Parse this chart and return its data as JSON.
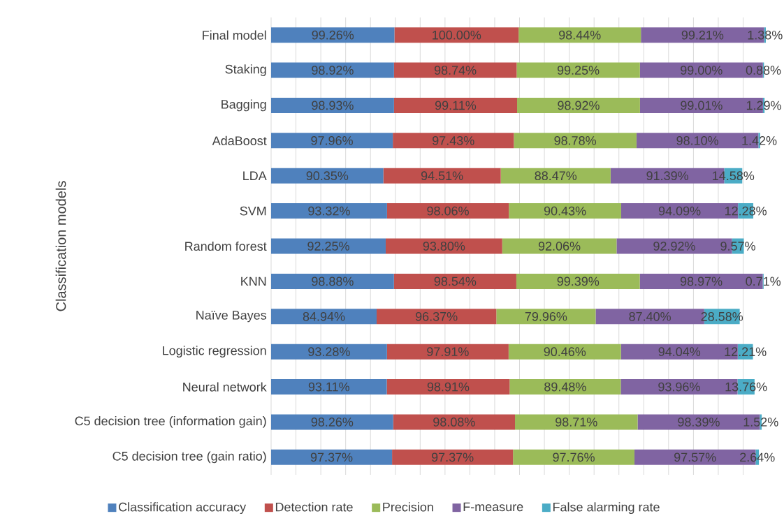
{
  "chart_data": {
    "type": "bar",
    "orientation": "horizontal",
    "stacked": true,
    "tick_labels": "y",
    "grid": "x",
    "legend": "bottom",
    "ylabel": "Classification models",
    "categories": [
      "Final model",
      "Staking",
      "Bagging",
      "AdaBoost",
      "LDA",
      "SVM",
      "Random forest",
      "KNN",
      "Naïve Bayes",
      "Logistic regression",
      "Neural network",
      "C5 decision tree (information gain)",
      "C5 decision tree (gain ratio)"
    ],
    "series": [
      {
        "name": "Classification accuracy",
        "color": "#4f81bd",
        "values": [
          99.26,
          98.92,
          98.93,
          97.96,
          90.35,
          93.32,
          92.25,
          98.88,
          84.94,
          93.28,
          93.11,
          98.26,
          97.37
        ],
        "value_labels": [
          "99.26%",
          "98.92%",
          "98.93%",
          "97.96%",
          "90.35%",
          "93.32%",
          "92.25%",
          "98.88%",
          "84.94%",
          "93.28%",
          "93.11%",
          "98.26%",
          "97.37%"
        ]
      },
      {
        "name": "Detection rate",
        "color": "#c0504d",
        "values": [
          100.0,
          98.74,
          99.11,
          97.43,
          94.51,
          98.06,
          93.8,
          98.54,
          96.37,
          97.91,
          98.91,
          98.08,
          97.37
        ],
        "value_labels": [
          "100.00%",
          "98.74%",
          "99.11%",
          "97.43%",
          "94.51%",
          "98.06%",
          "93.80%",
          "98.54%",
          "96.37%",
          "97.91%",
          "98.91%",
          "98.08%",
          "97.37%"
        ]
      },
      {
        "name": "Precision",
        "color": "#9bbb59",
        "values": [
          98.44,
          99.25,
          98.92,
          98.78,
          88.47,
          90.43,
          92.06,
          99.39,
          79.96,
          90.46,
          89.48,
          98.71,
          97.76
        ],
        "value_labels": [
          "98.44%",
          "99.25%",
          "98.92%",
          "98.78%",
          "88.47%",
          "90.43%",
          "92.06%",
          "99.39%",
          "79.96%",
          "90.46%",
          "89.48%",
          "98.71%",
          "97.76%"
        ]
      },
      {
        "name": "F-measure",
        "color": "#8064a2",
        "values": [
          99.21,
          99.0,
          99.01,
          98.1,
          91.39,
          94.09,
          92.92,
          98.97,
          87.4,
          94.04,
          93.96,
          98.39,
          97.57
        ],
        "value_labels": [
          "99.21%",
          "99.00%",
          "99.01%",
          "98.10%",
          "91.39%",
          "94.09%",
          "92.92%",
          "98.97%",
          "87.40%",
          "94.04%",
          "93.96%",
          "98.39%",
          "97.57%"
        ]
      },
      {
        "name": "False alarming rate",
        "color": "#4bacc6",
        "values": [
          1.38,
          0.88,
          1.29,
          1.42,
          14.58,
          12.28,
          9.57,
          0.71,
          28.58,
          12.21,
          13.76,
          1.52,
          2.64
        ],
        "value_labels": [
          "1.38%",
          "0.88%",
          "1.29%",
          "1.42%",
          "14.58%",
          "12.28%",
          "9.57%",
          "0.71%",
          "28.58%",
          "12.21%",
          "13.76%",
          "1.52%",
          "2.64%"
        ]
      }
    ]
  }
}
